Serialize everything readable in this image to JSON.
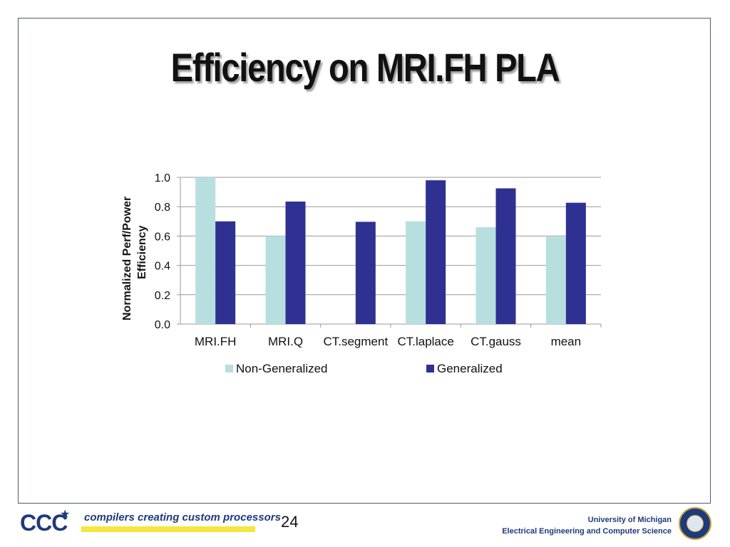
{
  "slide": {
    "title": "Efficiency on MRI.FH PLA",
    "page_number": "24",
    "logo_text": "CCC",
    "tagline": "compilers creating custom processors",
    "university": "University of Michigan",
    "department": "Electrical Engineering and Computer Science",
    "icons": [
      "star-icon",
      "hammer-sickle-logo-icon",
      "university-seal-icon"
    ]
  },
  "chart_data": {
    "type": "bar",
    "title": "",
    "ylabel_line1": "Normalized   Perf/Power",
    "ylabel_line2": "Efficiency",
    "xlabel": "",
    "categories": [
      "MRI.FH",
      "MRI.Q",
      "CT.segment",
      "CT.laplace",
      "CT.gauss",
      "mean"
    ],
    "series": [
      {
        "name": "Non-Generalized",
        "color": "#b7dfe0",
        "values": [
          1.0,
          0.6,
          0.0,
          0.7,
          0.66,
          0.595
        ]
      },
      {
        "name": "Generalized",
        "color": "#2e3192",
        "values": [
          0.7,
          0.835,
          0.697,
          0.98,
          0.925,
          0.827
        ]
      }
    ],
    "ylim": [
      0,
      1.0
    ],
    "yticks": [
      "0.0",
      "0.2",
      "0.4",
      "0.6",
      "0.8",
      "1.0"
    ],
    "grid": true,
    "legend_position": "bottom"
  }
}
